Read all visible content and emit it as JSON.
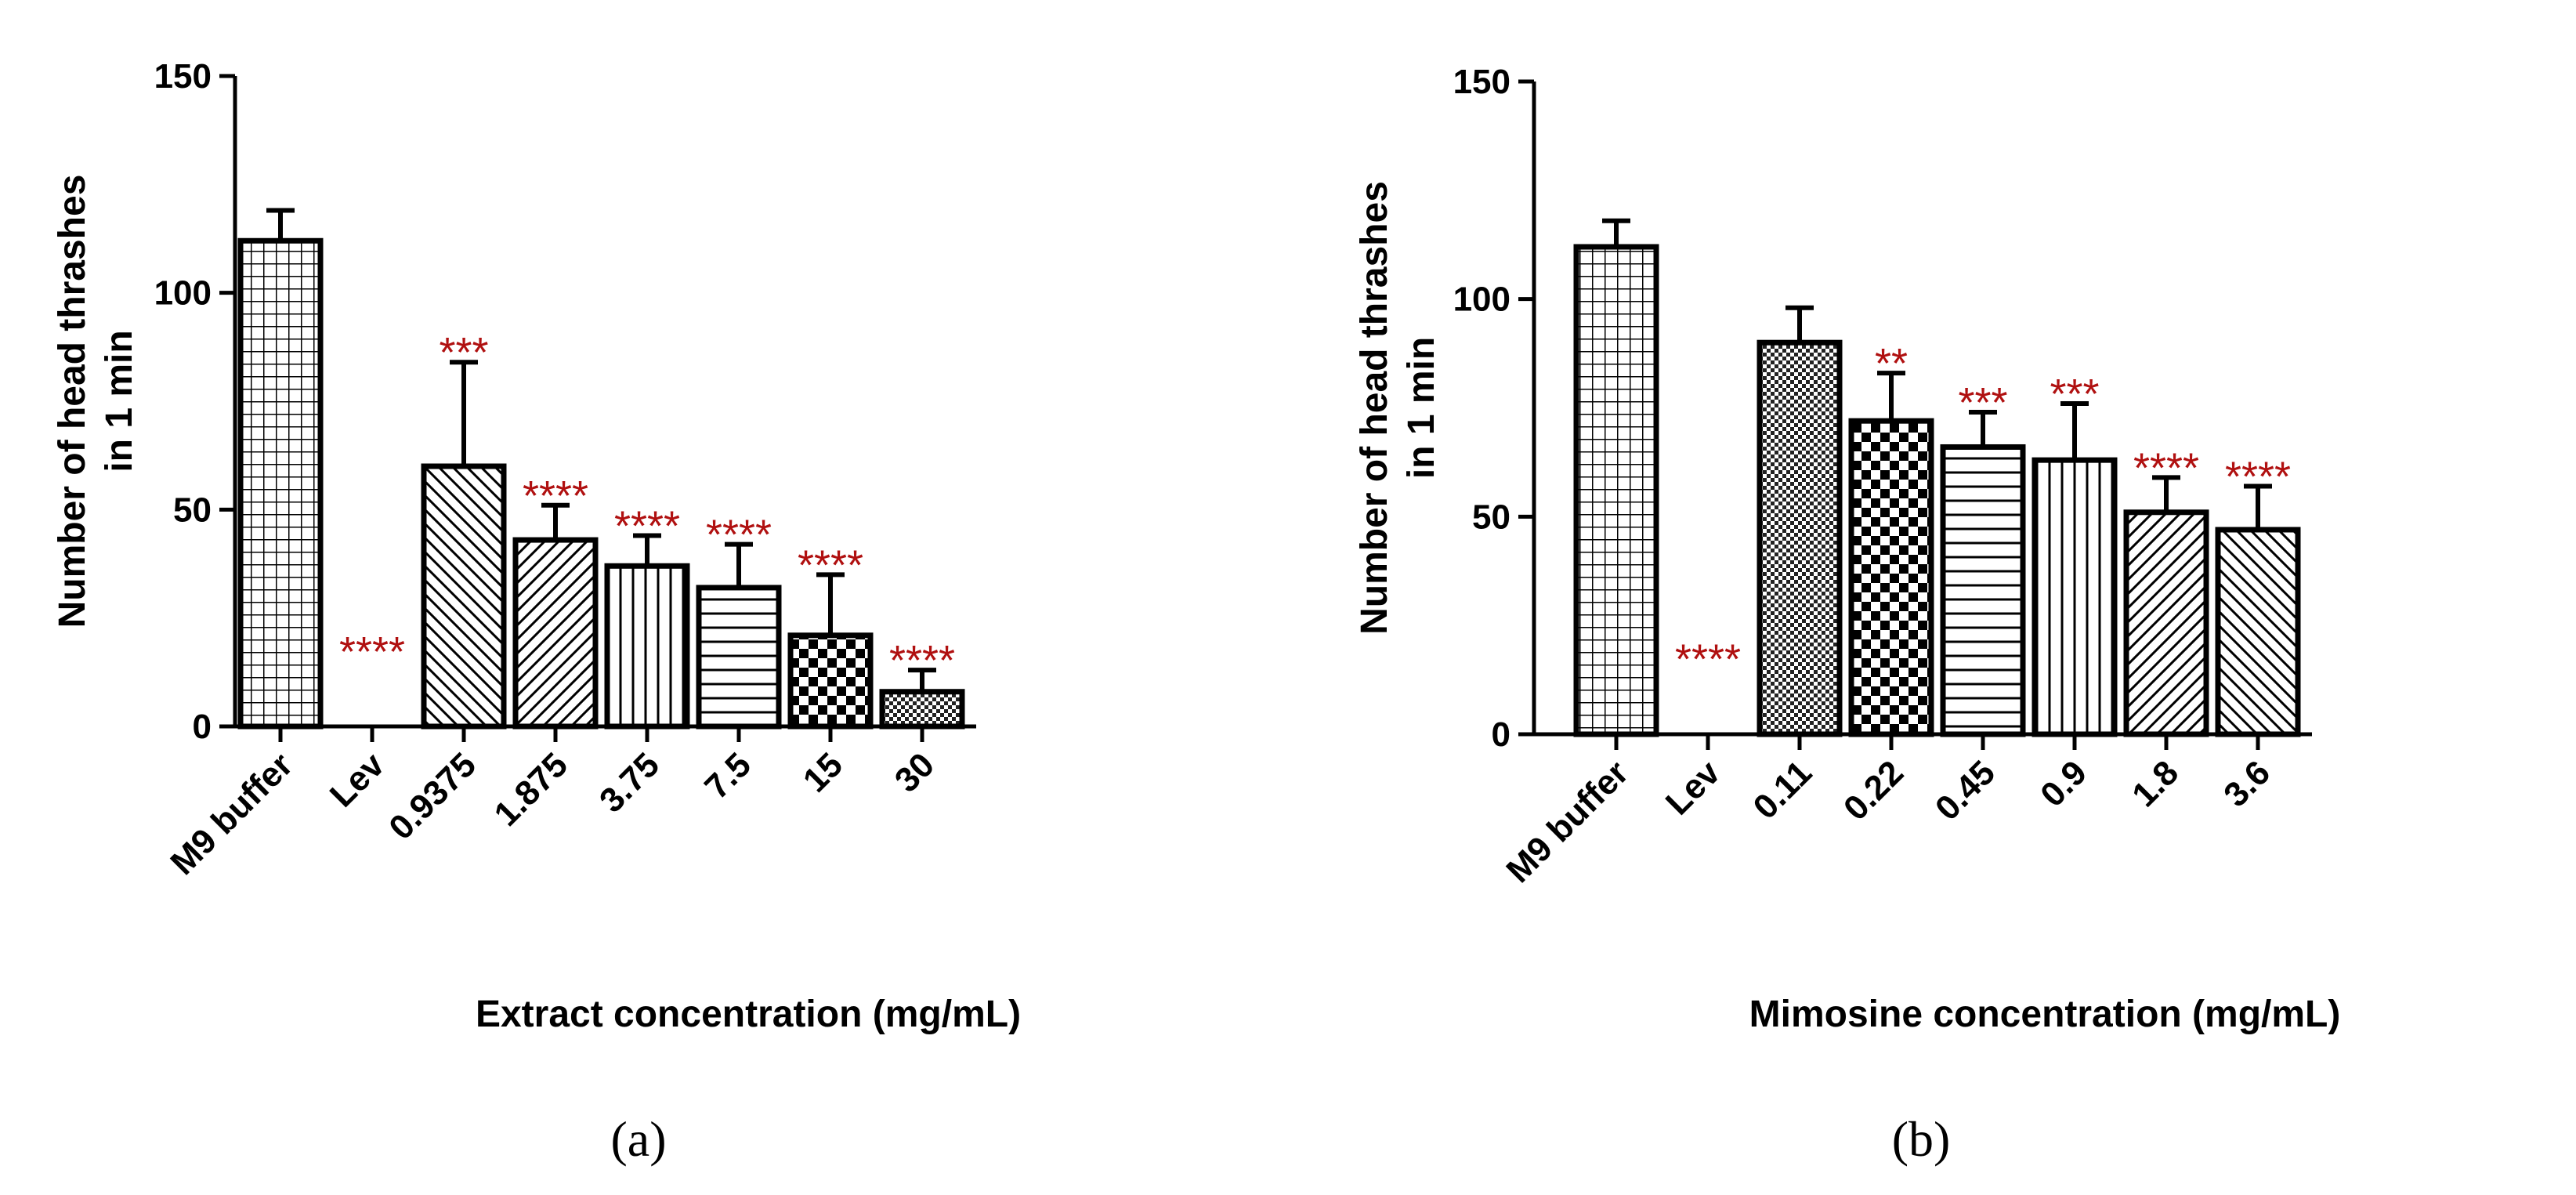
{
  "chart_data": [
    {
      "type": "bar",
      "panel_label": "(a)",
      "categories": [
        "M9 buffer",
        "Lev",
        "0.9375",
        "1.875",
        "3.75",
        "7.5",
        "15",
        "30"
      ],
      "values": [
        112,
        0,
        60,
        43,
        37,
        32,
        21,
        8
      ],
      "errors": [
        7,
        0,
        24,
        8,
        7,
        10,
        14,
        5
      ],
      "significance": [
        "",
        "****",
        "***",
        "****",
        "****",
        "****",
        "****",
        "****"
      ],
      "patterns": [
        "grid",
        "none",
        "diag-back",
        "diag-fwd",
        "vert",
        "horiz",
        "checker-large",
        "checker-small"
      ],
      "xlabel": "Extract concentration (mg/mL)",
      "ylabel": [
        "Number of head thrashes",
        "in 1 min"
      ],
      "ylim": [
        0,
        150
      ],
      "yticks": [
        0,
        50,
        100,
        150
      ]
    },
    {
      "type": "bar",
      "panel_label": "(b)",
      "categories": [
        "M9 buffer",
        "Lev",
        "0.11",
        "0.22",
        "0.45",
        "0.9",
        "1.8",
        "3.6"
      ],
      "values": [
        112,
        0,
        90,
        72,
        66,
        63,
        51,
        47
      ],
      "errors": [
        6,
        0,
        8,
        11,
        8,
        13,
        8,
        10
      ],
      "significance": [
        "",
        "****",
        "",
        "**",
        "***",
        "***",
        "****",
        "****"
      ],
      "patterns": [
        "grid",
        "none",
        "checker-small",
        "checker-large",
        "horiz",
        "vert",
        "diag-fwd",
        "diag-back"
      ],
      "xlabel": "Mimosine concentration (mg/mL)",
      "ylabel": [
        "Number of head thrashes",
        "in 1 min"
      ],
      "ylim": [
        0,
        150
      ],
      "yticks": [
        0,
        50,
        100,
        150
      ]
    }
  ],
  "colors": {
    "bar_stroke": "#000000",
    "significance": "#b01010"
  }
}
